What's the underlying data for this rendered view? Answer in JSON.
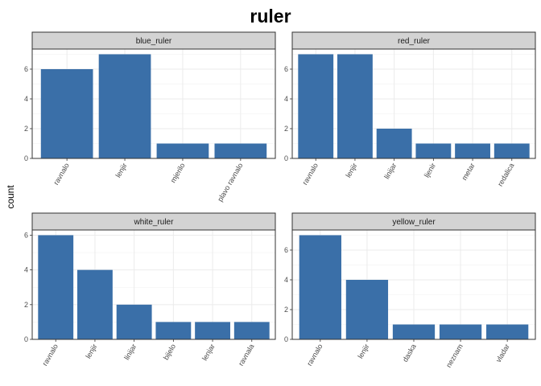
{
  "chart_data": {
    "type": "bar",
    "title": "ruler",
    "ylabel": "count",
    "xlabel": "",
    "grid": true,
    "bar_color": "#3A6FA8",
    "strip_color": "#D3D3D3",
    "panels": [
      {
        "name": "blue_ruler",
        "categories": [
          "ravnalo",
          "lenjir",
          "mjerilo",
          "plavo ravnalo"
        ],
        "values": [
          6,
          7,
          1,
          1
        ],
        "ylim": [
          0,
          7.35
        ],
        "yticks": [
          0,
          2,
          4,
          6
        ]
      },
      {
        "name": "red_ruler",
        "categories": [
          "ravnalo",
          "lenjir",
          "linijar",
          "ljenir",
          "metar",
          "redalica"
        ],
        "values": [
          7,
          7,
          2,
          1,
          1,
          1
        ],
        "ylim": [
          0,
          7.35
        ],
        "yticks": [
          0,
          2,
          4,
          6
        ]
      },
      {
        "name": "white_ruler",
        "categories": [
          "ravnalo",
          "lenjir",
          "linijar",
          "bijelo",
          "lenjar",
          "ravnala"
        ],
        "values": [
          6,
          4,
          2,
          1,
          1,
          1
        ],
        "ylim": [
          0,
          6.3
        ],
        "yticks": [
          0,
          2,
          4,
          6
        ]
      },
      {
        "name": "yellow_ruler",
        "categories": [
          "ravnalo",
          "lenjir",
          "daska",
          "neznam",
          "vladar"
        ],
        "values": [
          7,
          4,
          1,
          1,
          1
        ],
        "ylim": [
          0,
          7.35
        ],
        "yticks": [
          0,
          2,
          4,
          6
        ]
      }
    ]
  }
}
